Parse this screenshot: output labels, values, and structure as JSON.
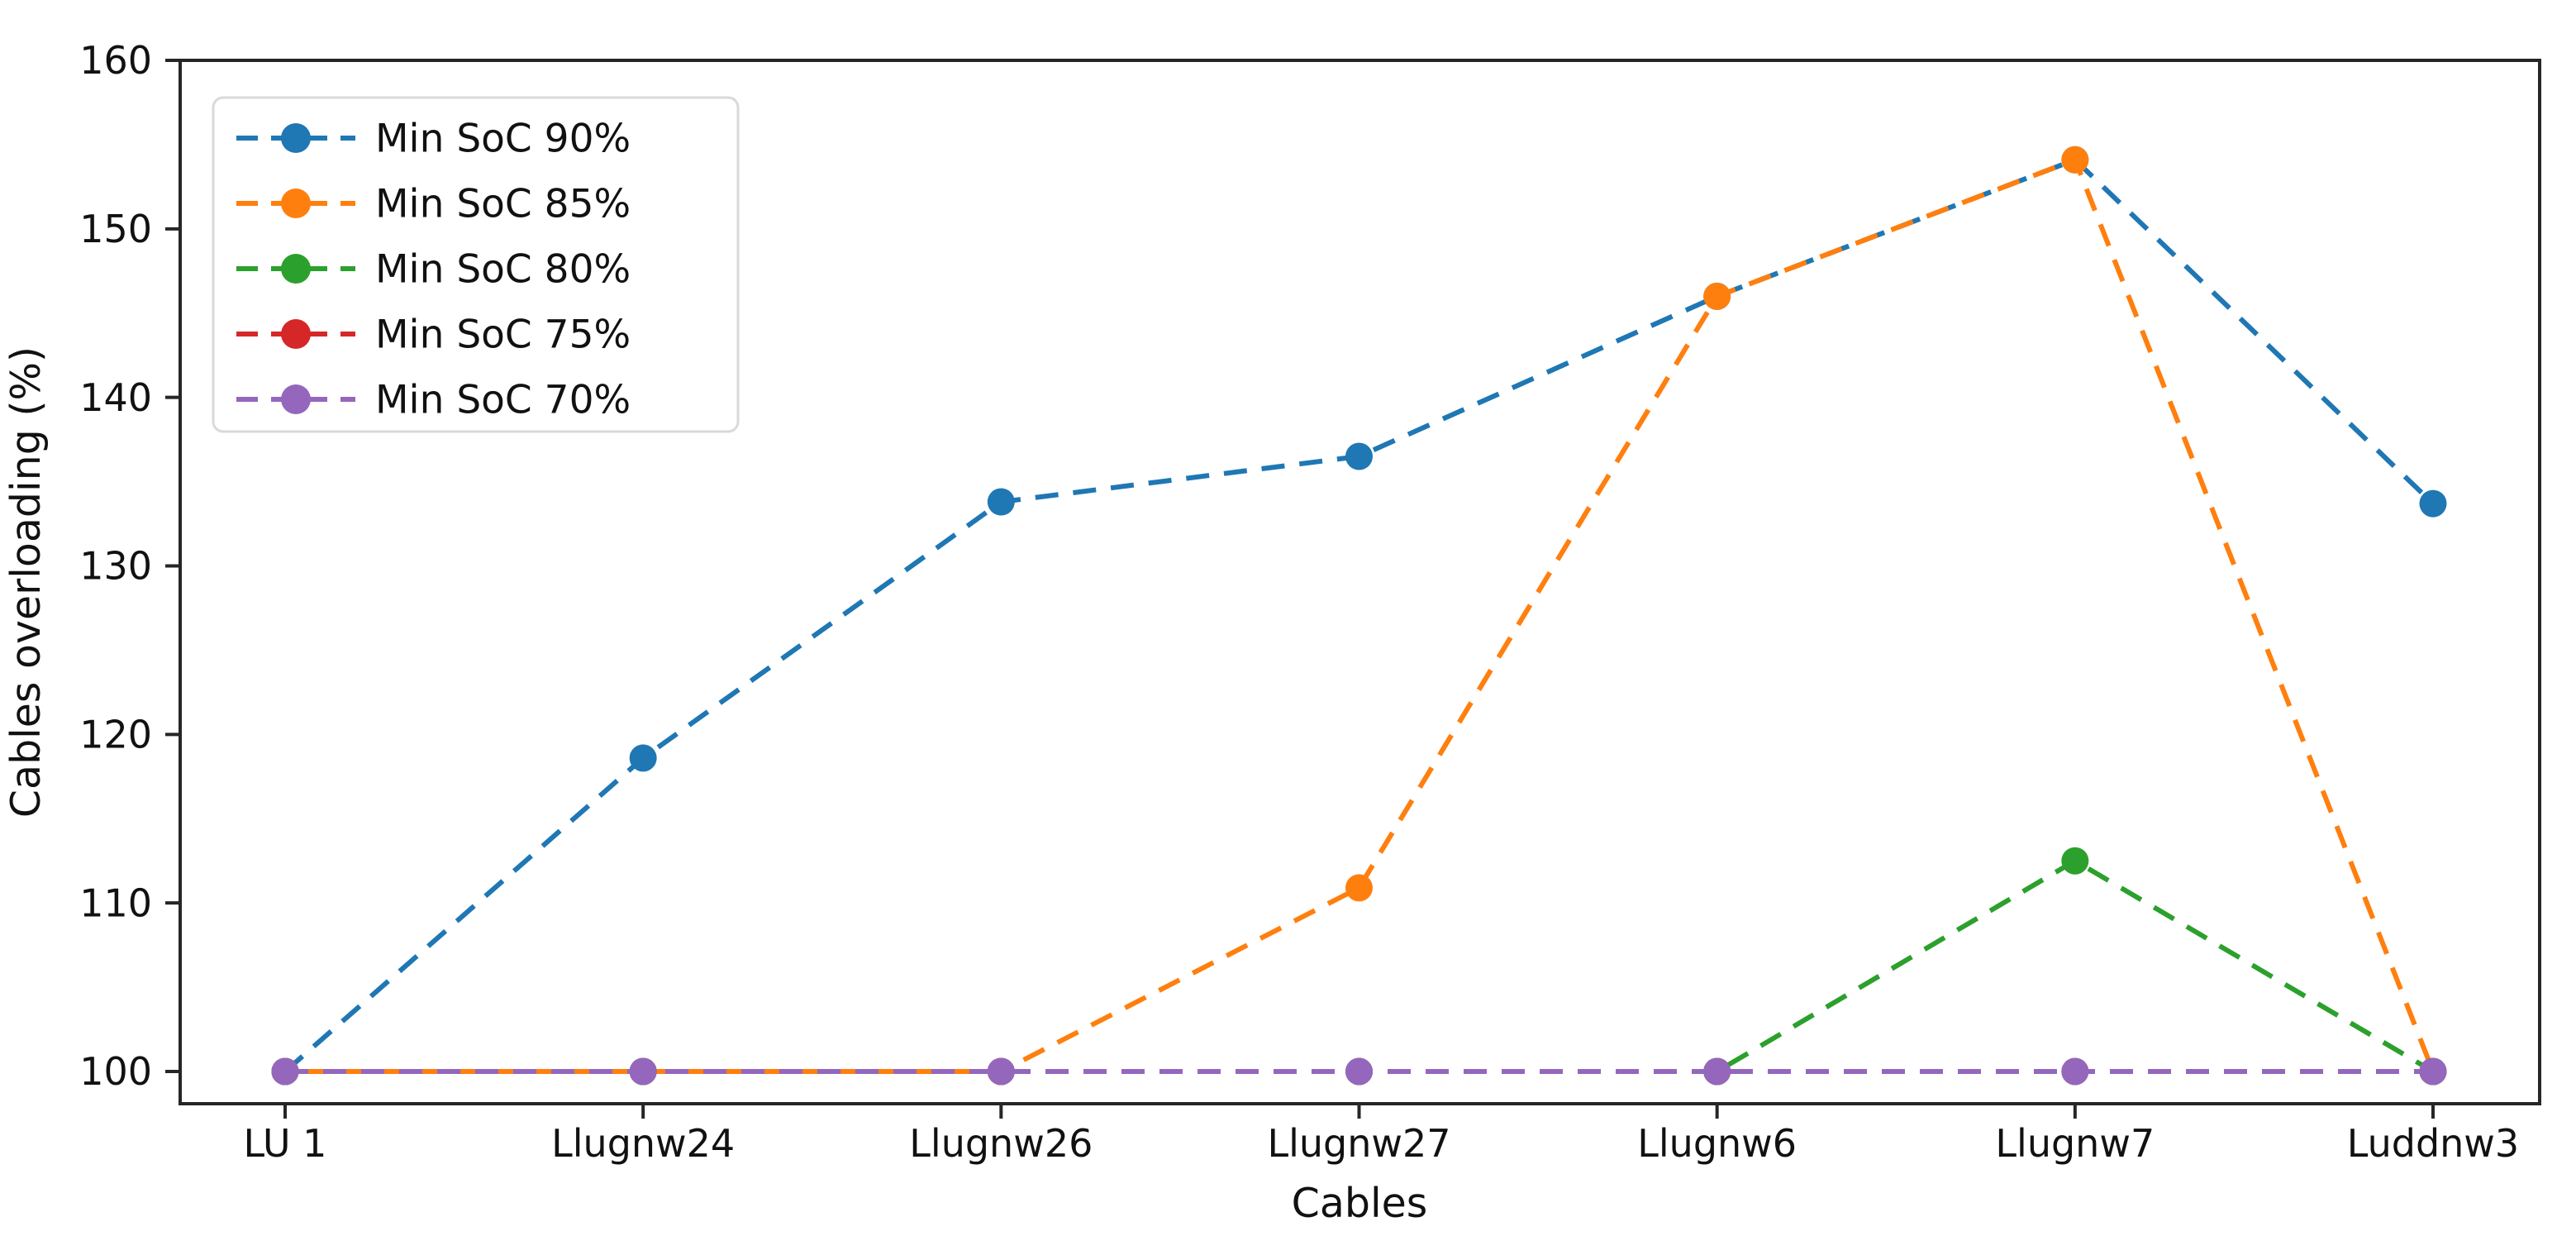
{
  "figure": {
    "background": "#ffffff",
    "spine_color": "#262626",
    "text_color": "#111111"
  },
  "chart_data": {
    "type": "line",
    "title": "",
    "xlabel": "Cables",
    "ylabel": "Cables overloading (%)",
    "categories": [
      "LU 1",
      "Llugnw24",
      "Llugnw26",
      "Llugnw27",
      "Llugnw6",
      "Llugnw7",
      "Luddnw3"
    ],
    "yticks": [
      100,
      110,
      120,
      130,
      140,
      150,
      160
    ],
    "ylim": [
      98.1,
      160
    ],
    "grid": false,
    "legend_position": "upper-left",
    "line_style": "dashed",
    "marker": "circle",
    "series": [
      {
        "name": "Min SoC 90%",
        "color": "#1f77b4",
        "values": [
          100,
          118.6,
          133.8,
          136.5,
          146.0,
          154.1,
          133.7
        ],
        "dash_offset": 0
      },
      {
        "name": "Min SoC 85%",
        "color": "#ff7f0e",
        "values": [
          100,
          100,
          100,
          110.9,
          146.0,
          154.1,
          100
        ],
        "dash_offset": 23
      },
      {
        "name": "Min SoC 80%",
        "color": "#2ca02c",
        "values": [
          100,
          100,
          100,
          100,
          100,
          112.5,
          100
        ],
        "dash_offset": 0
      },
      {
        "name": "Min SoC 75%",
        "color": "#d62728",
        "values": [
          100,
          100,
          100,
          100,
          100,
          100,
          100
        ],
        "dash_offset": 0
      },
      {
        "name": "Min SoC 70%",
        "color": "#9467bd",
        "values": [
          100,
          100,
          100,
          100,
          100,
          100,
          100
        ],
        "dash_offset": 0
      }
    ]
  }
}
